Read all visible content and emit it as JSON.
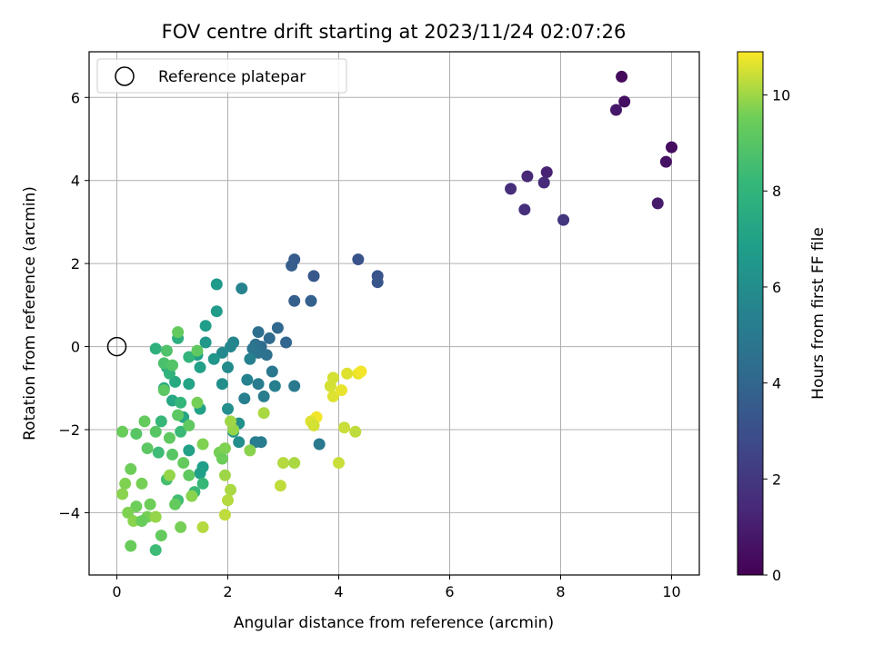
{
  "chart_data": {
    "type": "scatter",
    "title": "FOV centre drift starting at 2023/11/24 02:07:26",
    "xlabel": "Angular distance from reference (arcmin)",
    "ylabel": "Rotation from reference (arcmin)",
    "xlim": [
      -0.5,
      10.5
    ],
    "ylim": [
      -5.5,
      7.1
    ],
    "xticks": [
      0,
      2,
      4,
      6,
      8,
      10
    ],
    "yticks": [
      -4,
      -2,
      0,
      2,
      4,
      6
    ],
    "grid": true,
    "legend": {
      "placement": "top-left",
      "entries": [
        "Reference platepar"
      ]
    },
    "colorbar": {
      "label": "Hours from first FF file",
      "colormap": "viridis",
      "range": [
        0,
        10.9
      ],
      "ticks": [
        0,
        2,
        4,
        6,
        8,
        10
      ]
    },
    "reference_point": {
      "x": 0,
      "y": 0
    },
    "points": [
      {
        "x": 9.1,
        "y": 6.5,
        "h": 0.3
      },
      {
        "x": 9.15,
        "y": 5.9,
        "h": 0.5
      },
      {
        "x": 9.0,
        "y": 5.7,
        "h": 0.8
      },
      {
        "x": 10.0,
        "y": 4.8,
        "h": 0.4
      },
      {
        "x": 9.9,
        "y": 4.45,
        "h": 0.6
      },
      {
        "x": 9.75,
        "y": 3.45,
        "h": 0.9
      },
      {
        "x": 7.75,
        "y": 4.2,
        "h": 1.2
      },
      {
        "x": 7.4,
        "y": 4.1,
        "h": 1.4
      },
      {
        "x": 7.7,
        "y": 3.95,
        "h": 1.5
      },
      {
        "x": 7.1,
        "y": 3.8,
        "h": 1.6
      },
      {
        "x": 7.35,
        "y": 3.3,
        "h": 1.7
      },
      {
        "x": 8.05,
        "y": 3.05,
        "h": 1.9
      },
      {
        "x": 4.35,
        "y": 2.1,
        "h": 3.1
      },
      {
        "x": 4.7,
        "y": 1.7,
        "h": 3.2
      },
      {
        "x": 4.7,
        "y": 1.55,
        "h": 3.3
      },
      {
        "x": 3.55,
        "y": 1.7,
        "h": 3.4
      },
      {
        "x": 3.2,
        "y": 2.1,
        "h": 3.5
      },
      {
        "x": 3.15,
        "y": 1.95,
        "h": 3.6
      },
      {
        "x": 3.2,
        "y": 1.1,
        "h": 3.7
      },
      {
        "x": 3.5,
        "y": 1.1,
        "h": 3.8
      },
      {
        "x": 3.05,
        "y": 0.1,
        "h": 4.0
      },
      {
        "x": 2.9,
        "y": 0.45,
        "h": 4.1
      },
      {
        "x": 2.75,
        "y": 0.2,
        "h": 4.2
      },
      {
        "x": 2.6,
        "y": 0.0,
        "h": 4.3
      },
      {
        "x": 2.55,
        "y": 0.35,
        "h": 4.4
      },
      {
        "x": 2.5,
        "y": 0.05,
        "h": 4.5
      },
      {
        "x": 2.7,
        "y": -0.2,
        "h": 4.6
      },
      {
        "x": 2.55,
        "y": -0.15,
        "h": 4.7
      },
      {
        "x": 2.45,
        "y": -0.05,
        "h": 4.8
      },
      {
        "x": 2.8,
        "y": -0.6,
        "h": 4.9
      },
      {
        "x": 3.2,
        "y": -0.95,
        "h": 5.0
      },
      {
        "x": 2.55,
        "y": -0.9,
        "h": 5.1
      },
      {
        "x": 2.65,
        "y": -1.2,
        "h": 5.2
      },
      {
        "x": 2.3,
        "y": -1.25,
        "h": 5.3
      },
      {
        "x": 2.4,
        "y": -0.3,
        "h": 5.4
      },
      {
        "x": 2.25,
        "y": 1.4,
        "h": 5.5
      },
      {
        "x": 2.6,
        "y": -2.3,
        "h": 5.1
      },
      {
        "x": 2.5,
        "y": -2.3,
        "h": 5.2
      },
      {
        "x": 3.65,
        "y": -2.35,
        "h": 5.0
      },
      {
        "x": 2.85,
        "y": -0.95,
        "h": 5.3
      },
      {
        "x": 2.35,
        "y": -0.8,
        "h": 5.4
      },
      {
        "x": 2.1,
        "y": 0.1,
        "h": 5.6
      },
      {
        "x": 2.05,
        "y": 0.0,
        "h": 5.7
      },
      {
        "x": 1.9,
        "y": -0.15,
        "h": 5.8
      },
      {
        "x": 2.0,
        "y": -0.5,
        "h": 5.9
      },
      {
        "x": 1.9,
        "y": -0.9,
        "h": 6.0
      },
      {
        "x": 2.0,
        "y": -1.5,
        "h": 6.1
      },
      {
        "x": 2.2,
        "y": -1.85,
        "h": 6.2
      },
      {
        "x": 2.1,
        "y": -2.05,
        "h": 6.3
      },
      {
        "x": 2.2,
        "y": -2.3,
        "h": 6.1
      },
      {
        "x": 1.75,
        "y": -0.3,
        "h": 6.4
      },
      {
        "x": 1.6,
        "y": 0.1,
        "h": 6.5
      },
      {
        "x": 1.8,
        "y": 1.5,
        "h": 6.6
      },
      {
        "x": 1.8,
        "y": 0.85,
        "h": 6.7
      },
      {
        "x": 1.6,
        "y": 0.5,
        "h": 6.8
      },
      {
        "x": 1.45,
        "y": -0.2,
        "h": 6.9
      },
      {
        "x": 1.5,
        "y": -0.5,
        "h": 7.0
      },
      {
        "x": 1.3,
        "y": -0.9,
        "h": 7.1
      },
      {
        "x": 1.5,
        "y": -1.5,
        "h": 7.0
      },
      {
        "x": 1.55,
        "y": -2.9,
        "h": 6.8
      },
      {
        "x": 1.5,
        "y": -3.05,
        "h": 6.9
      },
      {
        "x": 1.3,
        "y": -2.5,
        "h": 7.0
      },
      {
        "x": 1.2,
        "y": -1.7,
        "h": 7.2
      },
      {
        "x": 1.0,
        "y": -1.3,
        "h": 7.3
      },
      {
        "x": 1.05,
        "y": -0.85,
        "h": 7.4
      },
      {
        "x": 0.85,
        "y": -1.0,
        "h": 7.5
      },
      {
        "x": 0.9,
        "y": -0.5,
        "h": 7.6
      },
      {
        "x": 1.1,
        "y": 0.2,
        "h": 7.7
      },
      {
        "x": 0.7,
        "y": -0.05,
        "h": 7.8
      },
      {
        "x": 0.95,
        "y": -0.65,
        "h": 7.9
      },
      {
        "x": 1.3,
        "y": -0.25,
        "h": 8.0
      },
      {
        "x": 1.15,
        "y": -1.35,
        "h": 8.1
      },
      {
        "x": 0.8,
        "y": -1.8,
        "h": 8.2
      },
      {
        "x": 1.15,
        "y": -2.05,
        "h": 8.3
      },
      {
        "x": 0.75,
        "y": -2.55,
        "h": 8.4
      },
      {
        "x": 1.55,
        "y": -3.3,
        "h": 8.2
      },
      {
        "x": 1.4,
        "y": -3.5,
        "h": 8.3
      },
      {
        "x": 1.1,
        "y": -3.7,
        "h": 8.5
      },
      {
        "x": 0.9,
        "y": -3.2,
        "h": 8.6
      },
      {
        "x": 0.7,
        "y": -4.9,
        "h": 8.4
      },
      {
        "x": 0.85,
        "y": -0.4,
        "h": 8.7
      },
      {
        "x": 0.9,
        "y": -0.1,
        "h": 8.8
      },
      {
        "x": 1.0,
        "y": -0.45,
        "h": 8.9
      },
      {
        "x": 0.7,
        "y": -2.05,
        "h": 9.0
      },
      {
        "x": 0.55,
        "y": -2.45,
        "h": 9.1
      },
      {
        "x": 0.95,
        "y": -2.2,
        "h": 9.2
      },
      {
        "x": 1.2,
        "y": -2.8,
        "h": 9.3
      },
      {
        "x": 1.3,
        "y": -1.9,
        "h": 9.2
      },
      {
        "x": 1.1,
        "y": -1.65,
        "h": 9.1
      },
      {
        "x": 0.35,
        "y": -2.1,
        "h": 9.0
      },
      {
        "x": 0.1,
        "y": -2.05,
        "h": 9.4
      },
      {
        "x": 0.5,
        "y": -1.8,
        "h": 9.3
      },
      {
        "x": 0.25,
        "y": -2.95,
        "h": 9.5
      },
      {
        "x": 0.45,
        "y": -3.3,
        "h": 9.6
      },
      {
        "x": 0.15,
        "y": -3.3,
        "h": 9.7
      },
      {
        "x": 0.1,
        "y": -3.55,
        "h": 9.8
      },
      {
        "x": 0.35,
        "y": -3.85,
        "h": 9.5
      },
      {
        "x": 0.55,
        "y": -4.1,
        "h": 9.6
      },
      {
        "x": 0.2,
        "y": -4.0,
        "h": 9.7
      },
      {
        "x": 0.3,
        "y": -4.2,
        "h": 9.8
      },
      {
        "x": 0.7,
        "y": -4.1,
        "h": 9.9
      },
      {
        "x": 0.25,
        "y": -4.8,
        "h": 9.4
      },
      {
        "x": 0.6,
        "y": -3.8,
        "h": 9.5
      },
      {
        "x": 1.05,
        "y": -3.8,
        "h": 9.3
      },
      {
        "x": 1.15,
        "y": -4.35,
        "h": 9.6
      },
      {
        "x": 1.55,
        "y": -4.35,
        "h": 10.2
      },
      {
        "x": 1.95,
        "y": -4.05,
        "h": 10.3
      },
      {
        "x": 1.95,
        "y": -3.1,
        "h": 10.0
      },
      {
        "x": 2.05,
        "y": -3.45,
        "h": 10.1
      },
      {
        "x": 2.0,
        "y": -3.7,
        "h": 10.2
      },
      {
        "x": 1.85,
        "y": -2.55,
        "h": 9.6
      },
      {
        "x": 1.95,
        "y": -2.45,
        "h": 9.7
      },
      {
        "x": 2.1,
        "y": -2.0,
        "h": 9.9
      },
      {
        "x": 2.05,
        "y": -1.8,
        "h": 10.0
      },
      {
        "x": 2.4,
        "y": -2.5,
        "h": 9.8
      },
      {
        "x": 2.65,
        "y": -1.6,
        "h": 10.1
      },
      {
        "x": 1.9,
        "y": -2.7,
        "h": 9.5
      },
      {
        "x": 1.3,
        "y": -3.1,
        "h": 9.2
      },
      {
        "x": 1.0,
        "y": -2.6,
        "h": 9.0
      },
      {
        "x": 1.1,
        "y": 0.35,
        "h": 9.3
      },
      {
        "x": 0.85,
        "y": -1.05,
        "h": 9.1
      },
      {
        "x": 1.45,
        "y": -0.1,
        "h": 9.2
      },
      {
        "x": 1.45,
        "y": -1.35,
        "h": 9.6
      },
      {
        "x": 1.55,
        "y": -2.35,
        "h": 9.7
      },
      {
        "x": 1.35,
        "y": -3.6,
        "h": 9.8
      },
      {
        "x": 0.95,
        "y": -3.1,
        "h": 9.9
      },
      {
        "x": 0.8,
        "y": -4.55,
        "h": 9.3
      },
      {
        "x": 0.45,
        "y": -4.2,
        "h": 9.4
      },
      {
        "x": 3.9,
        "y": -0.75,
        "h": 10.5
      },
      {
        "x": 4.15,
        "y": -0.65,
        "h": 10.6
      },
      {
        "x": 4.35,
        "y": -0.65,
        "h": 10.7
      },
      {
        "x": 4.4,
        "y": -0.6,
        "h": 10.8
      },
      {
        "x": 3.85,
        "y": -0.95,
        "h": 10.5
      },
      {
        "x": 3.9,
        "y": -1.2,
        "h": 10.6
      },
      {
        "x": 4.05,
        "y": -1.05,
        "h": 10.7
      },
      {
        "x": 3.6,
        "y": -1.7,
        "h": 10.8
      },
      {
        "x": 3.5,
        "y": -1.8,
        "h": 10.6
      },
      {
        "x": 3.55,
        "y": -1.9,
        "h": 10.5
      },
      {
        "x": 4.1,
        "y": -1.95,
        "h": 10.4
      },
      {
        "x": 4.3,
        "y": -2.05,
        "h": 10.3
      },
      {
        "x": 3.0,
        "y": -2.8,
        "h": 10.2
      },
      {
        "x": 3.2,
        "y": -2.8,
        "h": 10.1
      },
      {
        "x": 4.0,
        "y": -2.8,
        "h": 10.4
      },
      {
        "x": 2.95,
        "y": -3.35,
        "h": 10.3
      }
    ]
  }
}
